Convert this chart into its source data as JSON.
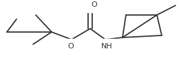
{
  "background_color": "#ffffff",
  "line_color": "#333333",
  "text_color": "#333333",
  "figsize": [
    2.63,
    0.91
  ],
  "dpi": 100,
  "line_width": 1.3,
  "font_size": 7.5,
  "xlim": [
    0,
    263
  ],
  "ylim": [
    0,
    91
  ]
}
